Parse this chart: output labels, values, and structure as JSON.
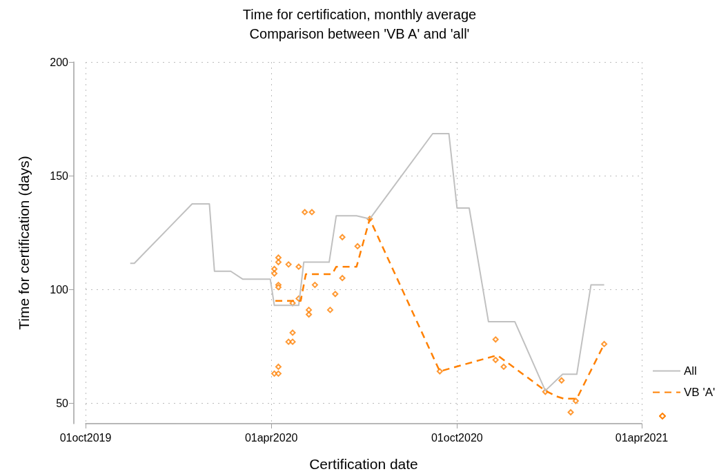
{
  "chart_data": {
    "type": "line",
    "title": "Time for certification, monthly average",
    "subtitle": "Comparison between 'VB A' and 'all'",
    "xlabel": "Certification date",
    "ylabel": "Time for certification (days)",
    "xlim": [
      "2019-10-01",
      "2021-04-01"
    ],
    "xticks": [
      {
        "value": "2019-10-01",
        "label": "01oct2019"
      },
      {
        "value": "2020-04-01",
        "label": "01apr2020"
      },
      {
        "value": "2020-10-01",
        "label": "01oct2020"
      },
      {
        "value": "2021-04-01",
        "label": "01apr2021"
      }
    ],
    "ylim": [
      41,
      200
    ],
    "yticks": [
      50,
      100,
      150,
      200
    ],
    "grid": true,
    "legend": "right",
    "series": [
      {
        "name": "All",
        "color": "#c0c0c0",
        "line_style": "solid",
        "marker": "none",
        "x": [
          "2019-11-14",
          "2019-11-18",
          "2020-01-14",
          "2020-01-31",
          "2020-02-05",
          "2020-02-21",
          "2020-03-04",
          "2020-03-31",
          "2020-04-04",
          "2020-04-28",
          "2020-05-03",
          "2020-05-28",
          "2020-06-04",
          "2020-06-24",
          "2020-07-07",
          "2020-09-07",
          "2020-09-23",
          "2020-10-01",
          "2020-10-13",
          "2020-11-01",
          "2020-11-27",
          "2020-12-27",
          "2021-01-13",
          "2021-01-27",
          "2021-02-10",
          "2021-02-23"
        ],
        "values": [
          111.5,
          111.5,
          137.6,
          137.6,
          108,
          108,
          104.5,
          104.5,
          93,
          93,
          112,
          112,
          132.4,
          132.4,
          131,
          168.5,
          168.5,
          135.8,
          135.8,
          85.8,
          85.8,
          55.5,
          62.7,
          62.7,
          102,
          102
        ]
      },
      {
        "name": "VB 'A'",
        "color": "#ff8000",
        "line_style": "dashed",
        "marker": "none",
        "x": [
          "2020-04-05",
          "2020-04-30",
          "2020-05-05",
          "2020-05-31",
          "2020-06-04",
          "2020-06-24",
          "2020-07-07",
          "2020-09-14",
          "2020-11-05",
          "2020-11-10",
          "2020-12-27",
          "2021-01-07",
          "2021-01-14",
          "2021-01-27",
          "2021-02-23"
        ],
        "values": [
          95,
          95,
          106.7,
          106.7,
          110,
          110,
          131,
          64,
          70.5,
          71,
          55.5,
          53,
          52,
          52,
          76
        ]
      },
      {
        "type": "scatter",
        "color": "#ff8000",
        "marker": "diamond",
        "x": [
          "2020-05-04",
          "2020-05-11",
          "2020-04-08",
          "2020-04-08",
          "2020-04-04",
          "2020-04-04",
          "2020-04-18",
          "2020-04-28",
          "2020-06-10",
          "2020-06-25",
          "2020-04-08",
          "2020-04-08",
          "2020-05-14",
          "2020-06-10",
          "2020-06-03",
          "2020-04-28",
          "2020-04-22",
          "2020-05-08",
          "2020-05-08",
          "2020-05-29",
          "2020-04-22",
          "2020-04-18",
          "2020-04-22",
          "2020-04-04",
          "2020-04-08",
          "2020-04-08",
          "2020-07-07",
          "2020-09-14",
          "2020-11-08",
          "2020-11-08",
          "2020-11-16",
          "2020-12-27",
          "2021-01-12",
          "2021-01-26",
          "2021-01-21",
          "2021-02-23"
        ],
        "values": [
          134,
          134,
          114,
          112,
          109,
          107,
          111,
          110,
          123,
          119,
          102,
          101,
          102,
          105,
          98,
          96,
          94,
          91,
          89,
          91,
          81,
          77,
          77,
          63,
          63,
          66,
          131,
          64,
          78,
          69,
          66,
          55,
          60,
          51,
          46,
          76
        ]
      }
    ]
  }
}
